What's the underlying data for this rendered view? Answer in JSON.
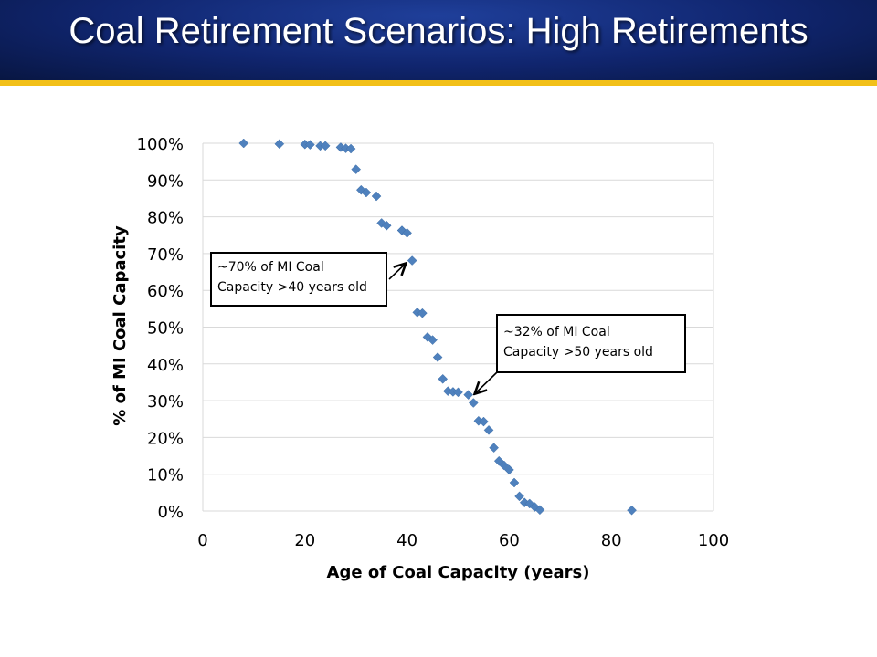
{
  "slide": {
    "title": "Coal Retirement Scenarios: High Retirements"
  },
  "colors": {
    "title_bg": "#10256e",
    "accent_rule": "#f2c019",
    "marker": "#4f81bd",
    "grid": "#d9d9d9"
  },
  "chart_data": {
    "type": "scatter",
    "xlabel": "Age of Coal Capacity (years)",
    "ylabel": "% of MI Coal Capacity",
    "xlim": [
      0,
      100
    ],
    "ylim": [
      0,
      100
    ],
    "x_ticks": [
      "0",
      "20",
      "40",
      "60",
      "80",
      "100"
    ],
    "y_ticks": [
      "0%",
      "10%",
      "20%",
      "30%",
      "40%",
      "50%",
      "60%",
      "70%",
      "80%",
      "90%",
      "100%"
    ],
    "grid": "horizontal",
    "marker": "diamond",
    "points": [
      {
        "x": 8,
        "y": 100
      },
      {
        "x": 15,
        "y": 99.8
      },
      {
        "x": 20,
        "y": 99.7
      },
      {
        "x": 21,
        "y": 99.6
      },
      {
        "x": 23,
        "y": 99.3
      },
      {
        "x": 24,
        "y": 99.3
      },
      {
        "x": 27,
        "y": 98.9
      },
      {
        "x": 28,
        "y": 98.6
      },
      {
        "x": 29,
        "y": 98.5
      },
      {
        "x": 30,
        "y": 92.9
      },
      {
        "x": 31,
        "y": 87.3
      },
      {
        "x": 32,
        "y": 86.6
      },
      {
        "x": 34,
        "y": 85.6
      },
      {
        "x": 35,
        "y": 78.3
      },
      {
        "x": 36,
        "y": 77.6
      },
      {
        "x": 39,
        "y": 76.3
      },
      {
        "x": 40,
        "y": 75.6
      },
      {
        "x": 41,
        "y": 68.1
      },
      {
        "x": 42,
        "y": 54.0
      },
      {
        "x": 43,
        "y": 53.8
      },
      {
        "x": 44,
        "y": 47.3
      },
      {
        "x": 45,
        "y": 46.5
      },
      {
        "x": 46,
        "y": 41.8
      },
      {
        "x": 47,
        "y": 35.9
      },
      {
        "x": 48,
        "y": 32.6
      },
      {
        "x": 49,
        "y": 32.4
      },
      {
        "x": 50,
        "y": 32.3
      },
      {
        "x": 52,
        "y": 31.6
      },
      {
        "x": 53,
        "y": 29.4
      },
      {
        "x": 54,
        "y": 24.5
      },
      {
        "x": 55,
        "y": 24.3
      },
      {
        "x": 56,
        "y": 22.0
      },
      {
        "x": 57,
        "y": 17.2
      },
      {
        "x": 58,
        "y": 13.6
      },
      {
        "x": 59,
        "y": 12.4
      },
      {
        "x": 60,
        "y": 11.2
      },
      {
        "x": 61,
        "y": 7.7
      },
      {
        "x": 62,
        "y": 4.0
      },
      {
        "x": 63,
        "y": 2.3
      },
      {
        "x": 64,
        "y": 2.0
      },
      {
        "x": 65,
        "y": 1.1
      },
      {
        "x": 66,
        "y": 0.3
      },
      {
        "x": 84,
        "y": 0.2
      }
    ],
    "annotations": [
      {
        "text": "~70% of MI Coal Capacity >40 years old",
        "line1": "~70% of MI Coal",
        "line2": "Capacity >40 years old",
        "points_to": {
          "x": 41,
          "y": 68.1
        }
      },
      {
        "text": "~32% of MI Coal Capacity >50 years old",
        "line1": "~32% of MI Coal",
        "line2": "Capacity >50 years old",
        "points_to": {
          "x": 52,
          "y": 31.6
        }
      }
    ]
  }
}
